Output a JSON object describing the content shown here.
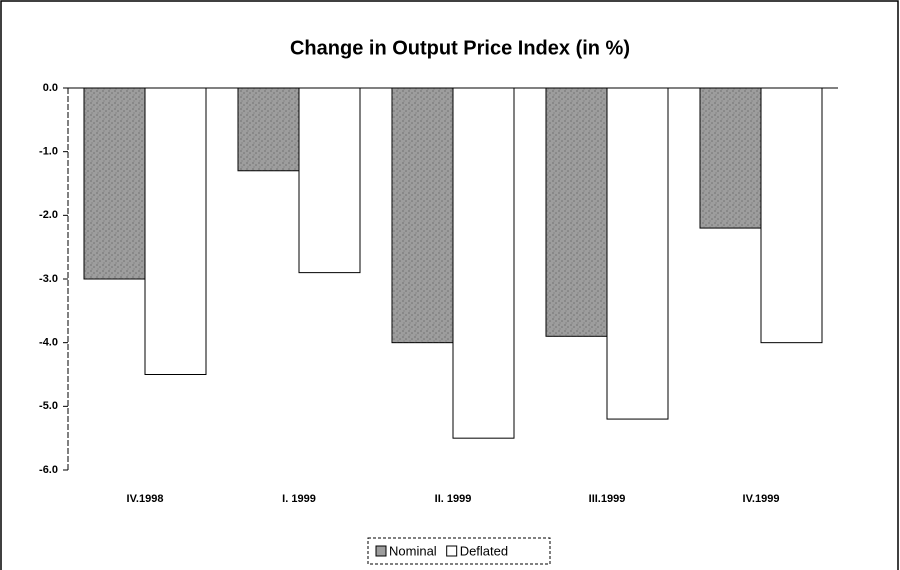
{
  "chart_data": {
    "type": "bar",
    "title": "Change in Output Price Index (in %)",
    "categories": [
      "IV.1998",
      "I. 1999",
      "II. 1999",
      "III.1999",
      "IV.1999"
    ],
    "series": [
      {
        "name": "Nominal",
        "color": "#9d9d9d",
        "values": [
          -3.0,
          -1.3,
          -4.0,
          -3.9,
          -2.2
        ]
      },
      {
        "name": "Deflated",
        "color": "#ffffff",
        "values": [
          -4.5,
          -2.9,
          -5.5,
          -5.2,
          -4.0
        ]
      }
    ],
    "ylim": [
      -6,
      0
    ],
    "yticks": [
      {
        "value": 0,
        "label": "0.0"
      },
      {
        "value": -1,
        "label": "-1.0"
      },
      {
        "value": -2,
        "label": "-2.0"
      },
      {
        "value": -3,
        "label": "-3.0"
      },
      {
        "value": -4,
        "label": "-4.0"
      },
      {
        "value": -5,
        "label": "-5.0"
      },
      {
        "value": -6,
        "label": "-6.0"
      }
    ],
    "legend": "bottom"
  }
}
